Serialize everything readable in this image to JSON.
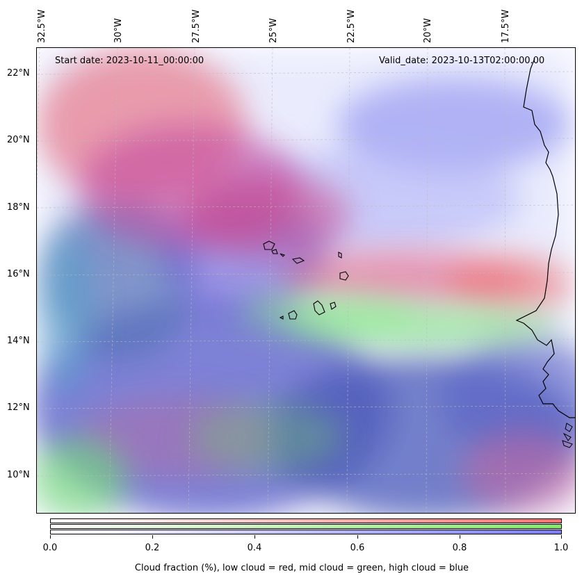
{
  "header": {
    "start_date": "Start date: 2023-10-11_00:00:00",
    "valid_date": "Valid_date: 2023-10-13T02:00:00.00"
  },
  "axes": {
    "lon_labels": [
      "32.5°W",
      "30°W",
      "27.5°W",
      "25°W",
      "22.5°W",
      "20°W",
      "17.5°W"
    ],
    "lat_labels": [
      "22°N",
      "20°N",
      "18°N",
      "16°N",
      "14°N",
      "12°N",
      "10°N"
    ]
  },
  "colorbar": {
    "ticks": [
      "0.0",
      "0.2",
      "0.4",
      "0.6",
      "0.8",
      "1.0"
    ],
    "label": "Cloud fraction (%), low cloud = red, mid cloud = green, high cloud = blue",
    "colors": {
      "low": "#f87171",
      "mid": "#86ef6a",
      "high": "#7b7bf0"
    }
  },
  "map": {
    "features": [
      "coastline-africa",
      "cape-verde-islands"
    ],
    "layers": [
      "low-cloud-red",
      "mid-cloud-green",
      "high-cloud-blue"
    ]
  }
}
